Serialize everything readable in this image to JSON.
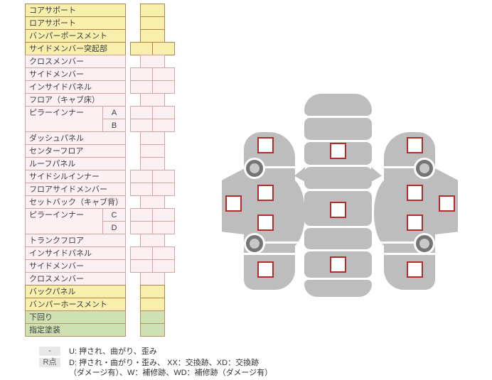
{
  "table": {
    "rows": [
      {
        "label": "コアサポート",
        "theme": "yellow",
        "cells": "single"
      },
      {
        "label": "ロアサポート",
        "theme": "yellow",
        "cells": "single"
      },
      {
        "label": "バンパーポースメント",
        "theme": "yellow",
        "cells": "single"
      },
      {
        "label": "サイドメンバー突起部",
        "theme": "yellow",
        "cells": "double"
      },
      {
        "label": "クロスメンバー",
        "theme": "pink",
        "cells": "single"
      },
      {
        "label": "サイドメンバー",
        "theme": "pink",
        "cells": "double"
      },
      {
        "label": "インサイドパネル",
        "theme": "pink",
        "cells": "double"
      },
      {
        "label": "フロア（キャブ床）",
        "theme": "pink",
        "cells": "single"
      },
      {
        "label": "ピラーインナー",
        "theme": "pink",
        "cells": "double",
        "subs": [
          "A",
          "B"
        ]
      },
      {
        "label": "ダッシュパネル",
        "theme": "pink",
        "cells": "single"
      },
      {
        "label": "センターフロア",
        "theme": "pink",
        "cells": "single"
      },
      {
        "label": "ルーフパネル",
        "theme": "pink",
        "cells": "single"
      },
      {
        "label": "サイドシルインナー",
        "theme": "pink",
        "cells": "double"
      },
      {
        "label": "フロアサイドメンバー",
        "theme": "pink",
        "cells": "double"
      },
      {
        "label": "セットバック（キャブ背）",
        "theme": "pink",
        "cells": "single"
      },
      {
        "label": "ピラーインナー",
        "theme": "pink",
        "cells": "double",
        "subs": [
          "C",
          "D"
        ]
      },
      {
        "label": "トランクフロア",
        "theme": "pink",
        "cells": "single"
      },
      {
        "label": "インサイドパネル",
        "theme": "pink",
        "cells": "double"
      },
      {
        "label": "サイドメンバー",
        "theme": "pink",
        "cells": "double"
      },
      {
        "label": "クロスメンバー",
        "theme": "pink",
        "cells": "single"
      },
      {
        "label": "バックパネル",
        "theme": "yellow",
        "cells": "single"
      },
      {
        "label": "バンパーホースメント",
        "theme": "yellow",
        "cells": "single"
      },
      {
        "label": "下回り",
        "theme": "green",
        "cells": "single"
      },
      {
        "label": "指定塗装",
        "theme": "green",
        "cells": "single"
      }
    ]
  },
  "legend": {
    "items": [
      {
        "badge": "-",
        "lines": [
          "U: 押され、曲がり、歪み"
        ]
      },
      {
        "badge": "R点",
        "lines": [
          "D: 押され・曲がり・歪み、 XX：交換跡、XD：交換跡",
          "（ダメージ有）、W：補修跡、WD：補修跡（ダメージ有）"
        ]
      }
    ]
  },
  "diagram": {
    "views": [
      {
        "name": "left-side-view",
        "checkboxes": 5,
        "wheels": 2
      },
      {
        "name": "top-view",
        "checkboxes": 3
      },
      {
        "name": "right-side-view",
        "checkboxes": 5,
        "wheels": 2
      }
    ]
  },
  "colors": {
    "yellow_fill": "#f8efad",
    "yellow_border": "#b5824b",
    "pink_fill": "#fcf0f2",
    "pink_border": "#d9a2a2",
    "green_fill": "#cfe1b2",
    "green_border": "#bc8f5f",
    "car_gray": "#bdbdbd",
    "wheel_dark": "#757575",
    "wheel_inner": "#c8c8c8",
    "checkbox_border": "#b52a2a"
  }
}
